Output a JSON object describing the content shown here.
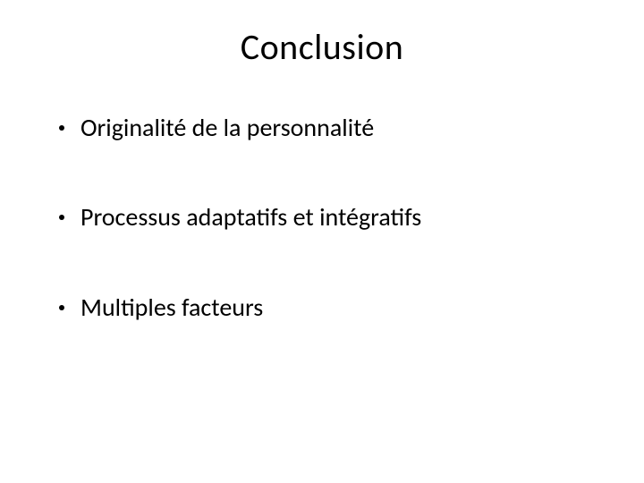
{
  "slide": {
    "title": "Conclusion",
    "bullets": [
      "Originalité de la personnalité",
      "Processus adaptatifs et intégratifs",
      "Multiples facteurs"
    ],
    "styling": {
      "background_color": "#ffffff",
      "text_color": "#000000",
      "title_fontsize": 40,
      "title_fontweight": 400,
      "bullet_fontsize": 28,
      "bullet_fontweight": 400,
      "bullet_dot_color": "#000000",
      "bullet_dot_size": 6,
      "font_family": "Calibri",
      "title_align": "center",
      "bullet_spacing": 64
    }
  }
}
